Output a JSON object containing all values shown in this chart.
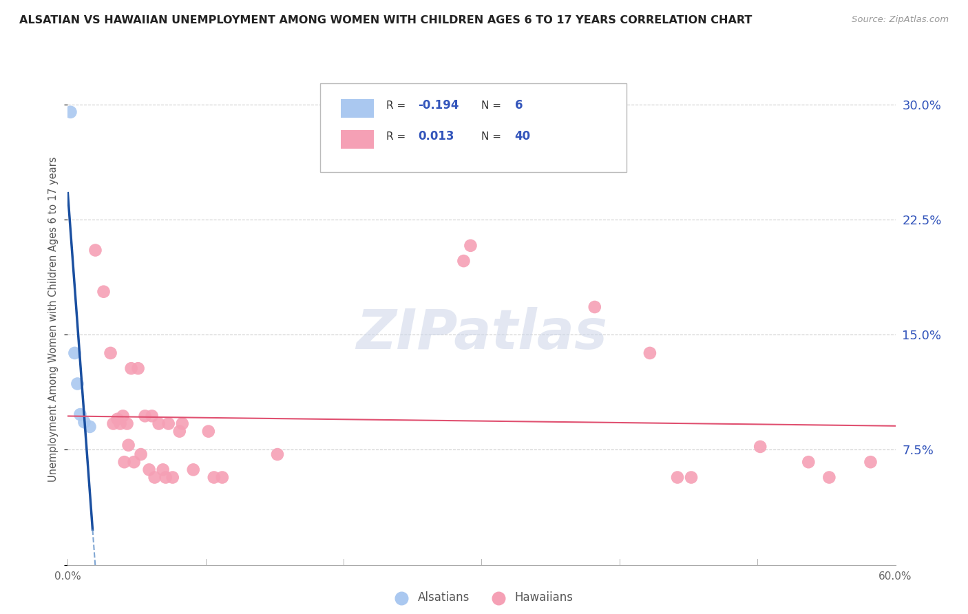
{
  "title": "ALSATIAN VS HAWAIIAN UNEMPLOYMENT AMONG WOMEN WITH CHILDREN AGES 6 TO 17 YEARS CORRELATION CHART",
  "source": "Source: ZipAtlas.com",
  "ylabel": "Unemployment Among Women with Children Ages 6 to 17 years",
  "xlim": [
    0,
    0.6
  ],
  "ylim": [
    0.0,
    0.32
  ],
  "yticks": [
    0.0,
    0.075,
    0.15,
    0.225,
    0.3
  ],
  "ytick_labels": [
    "",
    "7.5%",
    "15.0%",
    "22.5%",
    "30.0%"
  ],
  "xticks": [
    0.0,
    0.1,
    0.2,
    0.3,
    0.4,
    0.5,
    0.6
  ],
  "xtick_labels": [
    "0.0%",
    "",
    "",
    "",
    "",
    "",
    "60.0%"
  ],
  "alsatian_color": "#aac8f0",
  "hawaiian_color": "#f5a0b5",
  "trend_alsatian_solid_color": "#1a4fa0",
  "trend_alsatian_dash_color": "#6090c8",
  "trend_hawaiian_color": "#e05070",
  "background_color": "#ffffff",
  "grid_color": "#cccccc",
  "right_tick_color": "#3355bb",
  "title_color": "#222222",
  "watermark_color": "#ccd5e8",
  "watermark": "ZIPatlas",
  "legend_r1_val": "-0.194",
  "legend_n1_val": "6",
  "legend_r2_val": "0.013",
  "legend_n2_val": "40",
  "alsatian_points": [
    [
      0.002,
      0.295
    ],
    [
      0.005,
      0.138
    ],
    [
      0.007,
      0.118
    ],
    [
      0.009,
      0.098
    ],
    [
      0.012,
      0.093
    ],
    [
      0.016,
      0.09
    ]
  ],
  "hawaiian_points": [
    [
      0.02,
      0.205
    ],
    [
      0.026,
      0.178
    ],
    [
      0.031,
      0.138
    ],
    [
      0.033,
      0.092
    ],
    [
      0.036,
      0.095
    ],
    [
      0.038,
      0.092
    ],
    [
      0.04,
      0.097
    ],
    [
      0.041,
      0.067
    ],
    [
      0.043,
      0.092
    ],
    [
      0.044,
      0.078
    ],
    [
      0.046,
      0.128
    ],
    [
      0.048,
      0.067
    ],
    [
      0.051,
      0.128
    ],
    [
      0.053,
      0.072
    ],
    [
      0.056,
      0.097
    ],
    [
      0.059,
      0.062
    ],
    [
      0.061,
      0.097
    ],
    [
      0.063,
      0.057
    ],
    [
      0.066,
      0.092
    ],
    [
      0.069,
      0.062
    ],
    [
      0.071,
      0.057
    ],
    [
      0.073,
      0.092
    ],
    [
      0.076,
      0.057
    ],
    [
      0.081,
      0.087
    ],
    [
      0.083,
      0.092
    ],
    [
      0.091,
      0.062
    ],
    [
      0.102,
      0.087
    ],
    [
      0.106,
      0.057
    ],
    [
      0.112,
      0.057
    ],
    [
      0.152,
      0.072
    ],
    [
      0.287,
      0.198
    ],
    [
      0.292,
      0.208
    ],
    [
      0.382,
      0.168
    ],
    [
      0.422,
      0.138
    ],
    [
      0.442,
      0.057
    ],
    [
      0.452,
      0.057
    ],
    [
      0.502,
      0.077
    ],
    [
      0.537,
      0.067
    ],
    [
      0.552,
      0.057
    ],
    [
      0.582,
      0.067
    ]
  ]
}
